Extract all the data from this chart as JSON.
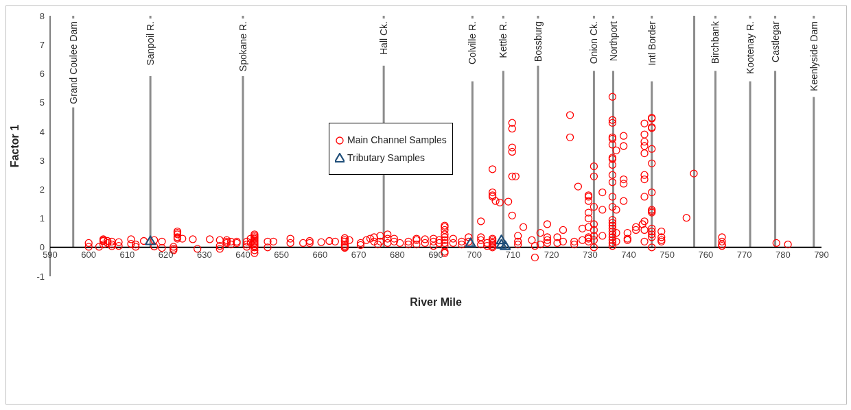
{
  "chart_data": {
    "type": "scatter",
    "xlabel": "River Mile",
    "ylabel": "Factor 1",
    "xlim": [
      590,
      790
    ],
    "xticks": [
      590,
      600,
      610,
      620,
      630,
      640,
      650,
      660,
      670,
      680,
      690,
      700,
      710,
      720,
      730,
      740,
      750,
      760,
      770,
      780,
      790
    ],
    "ylim": [
      -1,
      8
    ],
    "yticks": [
      -1,
      0,
      1,
      2,
      3,
      4,
      5,
      6,
      7,
      8
    ],
    "grid": false,
    "legend": "left",
    "series": [
      {
        "name": "Main Channel Samples",
        "color": "#ff0000",
        "marker": "circle",
        "x": [
          600,
          600,
          602.7,
          603.8,
          603.8,
          603.8,
          603.8,
          604.9,
          604.9,
          606,
          606,
          606,
          607.8,
          607.8,
          611,
          611,
          612.2,
          612.2,
          614.3,
          617,
          617,
          619,
          619,
          622,
          622,
          622,
          623,
          623,
          623,
          623,
          623,
          624.3,
          627,
          628.2,
          631.4,
          634,
          634,
          634,
          635.8,
          635.8,
          635.8,
          636.9,
          636.9,
          638.4,
          638.4,
          641,
          641,
          641,
          642,
          642,
          643,
          643,
          643,
          643,
          643,
          643,
          643,
          643,
          643,
          643,
          643,
          643,
          646.4,
          646.4,
          647.9,
          652.3,
          652.3,
          655.6,
          657.3,
          657.3,
          660.3,
          662.4,
          663.9,
          666.4,
          666.4,
          666.4,
          666.4,
          666.4,
          666.4,
          666.4,
          667.6,
          670.5,
          670.5,
          672,
          673,
          674,
          674,
          675,
          675.6,
          675.6,
          677.5,
          677.5,
          677.5,
          679.2,
          679.2,
          680.7,
          682.9,
          682.9,
          685,
          685,
          685,
          687.2,
          687.2,
          689.4,
          689.4,
          689.4,
          690.9,
          690.9,
          692.3,
          692.3,
          692.3,
          692.3,
          692.3,
          692.3,
          692.3,
          692.3,
          692.3,
          692.3,
          694.5,
          694.5,
          696.7,
          696.7,
          698.5,
          698.5,
          701.7,
          701.7,
          701.7,
          701.7,
          703.3,
          703.3,
          704.7,
          704.7,
          704.7,
          704.7,
          704.7,
          704.7,
          704.7,
          704.7,
          704.7,
          704.7,
          704.7,
          705.5,
          706.6,
          708.8,
          709.8,
          709.8,
          709.8,
          709.8,
          709.8,
          709.8,
          710.7,
          711.3,
          711.3,
          711.3,
          712.7,
          714.9,
          715.7,
          715.7,
          717.1,
          717.1,
          718.9,
          718.9,
          718.9,
          718.9,
          721.5,
          721.5,
          723,
          723,
          724.8,
          724.8,
          725.9,
          725.9,
          726.9,
          728,
          728,
          729.6,
          729.6,
          729.6,
          729.6,
          729.6,
          729.6,
          729.6,
          729.6,
          729.6,
          731,
          731,
          731,
          731,
          731,
          731,
          731,
          731,
          733.2,
          733.2,
          733.2,
          735.8,
          735.8,
          735.8,
          735.8,
          735.8,
          735.8,
          735.8,
          735.8,
          735.8,
          735.8,
          735.8,
          735.8,
          735.8,
          735.8,
          735.8,
          735.8,
          735.8,
          735.8,
          735.8,
          735.8,
          735.8,
          735.8,
          735.8,
          736.8,
          736.8,
          736.8,
          736.8,
          738.7,
          738.7,
          738.7,
          738.7,
          738.7,
          739.7,
          739.7,
          739.7,
          741.9,
          741.9,
          743.6,
          744.1,
          744.1,
          744.1,
          744.1,
          744.1,
          744.1,
          744.1,
          744.1,
          744.1,
          744.1,
          744.1,
          746,
          746,
          746,
          746,
          746,
          746,
          746,
          746,
          746,
          746,
          746,
          746,
          746,
          746,
          746,
          748.5,
          748.5,
          748.5,
          748.5,
          755,
          756.9,
          764.2,
          764.2,
          764.2,
          764.2,
          778.3,
          781.3
        ],
        "values": [
          0.15,
          0.02,
          0.02,
          0.28,
          0.25,
          0.22,
          0.1,
          0.22,
          0.15,
          0.1,
          0.2,
          0.04,
          0.18,
          0.05,
          0.28,
          0.12,
          0.1,
          0.02,
          0.22,
          0.25,
          0.03,
          0.2,
          -0.02,
          0.02,
          -0.05,
          -0.1,
          0.55,
          0.5,
          0.45,
          0.35,
          0.3,
          0.3,
          0.28,
          -0.05,
          0.28,
          0.25,
          0.05,
          -0.05,
          0.25,
          0.2,
          0.15,
          0.2,
          0.1,
          0.2,
          0.15,
          0.2,
          0.1,
          0.02,
          0.3,
          0.15,
          0.45,
          0.4,
          0.35,
          0.3,
          0.25,
          0.2,
          0.15,
          0.1,
          0.05,
          0,
          -0.1,
          -0.2,
          0.2,
          0,
          0.2,
          0.3,
          0.15,
          0.15,
          0.22,
          0.15,
          0.18,
          0.22,
          0.2,
          0.32,
          0.25,
          0.2,
          0.1,
          0.05,
          0,
          -0.02,
          0.25,
          0.15,
          0.08,
          0.25,
          0.3,
          0.35,
          0.2,
          0.1,
          0.4,
          0.2,
          0.45,
          0.3,
          0.15,
          0.3,
          0.2,
          0.15,
          0.1,
          0.2,
          0.3,
          0.25,
          0.1,
          0.28,
          0.15,
          0.3,
          0.2,
          0.05,
          0.25,
          0.15,
          0.75,
          0.7,
          0.6,
          0.45,
          0.35,
          0.25,
          0.15,
          0.05,
          -0.15,
          -0.2,
          0.3,
          0.15,
          0.2,
          0.1,
          0.35,
          0.2,
          0.9,
          0.35,
          0.25,
          0.1,
          0.15,
          0.05,
          2.7,
          1.9,
          1.8,
          1.75,
          0.3,
          0.25,
          0.2,
          0.15,
          0.1,
          0.05,
          0,
          1.6,
          1.55,
          1.58,
          4.3,
          4.1,
          3.45,
          3.3,
          2.45,
          1.1,
          2.45,
          0.4,
          0.1,
          0.2,
          0.7,
          0.25,
          -0.35,
          0.05,
          0.5,
          0.1,
          0.8,
          0.35,
          0.25,
          0.15,
          0.35,
          0.15,
          0.6,
          0.2,
          4.57,
          3.8,
          0.2,
          0.1,
          2.1,
          0.65,
          0.25,
          1.8,
          1.75,
          1.6,
          1.2,
          1,
          0.7,
          0.35,
          0.3,
          0.2,
          2.8,
          2.45,
          1.4,
          0.8,
          0.6,
          0.4,
          0.25,
          0,
          1.3,
          1.9,
          0.4,
          5.2,
          4.4,
          4.3,
          3.8,
          3.75,
          3.55,
          3.1,
          3.05,
          2.85,
          2.5,
          2.25,
          1.75,
          1.4,
          0.95,
          0.85,
          0.75,
          0.65,
          0.55,
          0.45,
          0.35,
          0.25,
          0.15,
          0.05,
          3.35,
          1.3,
          0.5,
          0.2,
          3.85,
          3.5,
          2.35,
          2.2,
          1.6,
          0.5,
          0.3,
          0.25,
          0.6,
          0.7,
          0.8,
          4.28,
          3.9,
          3.65,
          3.5,
          3.25,
          2.5,
          2.35,
          1.75,
          0.9,
          0.6,
          0.2,
          4.48,
          4.45,
          4.15,
          4.12,
          3.4,
          2.9,
          1.9,
          1.3,
          1.25,
          1.2,
          0.65,
          0.55,
          0.45,
          0.35,
          0,
          0.55,
          0.35,
          0.25,
          0.2,
          1.02,
          2.55,
          0.35,
          0.2,
          0.1,
          0.05,
          0.15,
          0.1
        ]
      },
      {
        "name": "Tributary Samples",
        "color": "#1f4e79",
        "marker": "triangle",
        "x": [
          616,
          699,
          707,
          707,
          708
        ],
        "values": [
          0.22,
          0.15,
          0.25,
          0.1,
          0.05
        ]
      }
    ],
    "ref_lines": [
      {
        "axis": "x",
        "value": 596,
        "label": "Grand Coulee Dam",
        "color": "#8c8c8c"
      },
      {
        "axis": "x",
        "value": 616,
        "label": "Sanpoil R.",
        "color": "#8c8c8c"
      },
      {
        "axis": "x",
        "value": 640,
        "label": "Spokane R.",
        "color": "#8c8c8c"
      },
      {
        "axis": "x",
        "value": 676.5,
        "label": "Hall Ck.",
        "color": "#8c8c8c"
      },
      {
        "axis": "x",
        "value": 699.5,
        "label": "Colville R.",
        "color": "#8c8c8c"
      },
      {
        "axis": "x",
        "value": 707.5,
        "label": "Kettle R.",
        "color": "#8c8c8c"
      },
      {
        "axis": "x",
        "value": 716.5,
        "label": "Bossburg",
        "color": "#8c8c8c"
      },
      {
        "axis": "x",
        "value": 731,
        "label": "Onion Ck.",
        "color": "#8c8c8c"
      },
      {
        "axis": "x",
        "value": 736,
        "label": "Northport",
        "color": "#8c8c8c"
      },
      {
        "axis": "x",
        "value": 746,
        "label": "Intl Border",
        "color": "#8c8c8c"
      },
      {
        "axis": "x",
        "value": 757,
        "label": null,
        "color": "#8c8c8c"
      },
      {
        "axis": "x",
        "value": 762.5,
        "label": "Birchbank",
        "color": "#8c8c8c"
      },
      {
        "axis": "x",
        "value": 771.5,
        "label": "Kootenay R.",
        "color": "#8c8c8c"
      },
      {
        "axis": "x",
        "value": 778,
        "label": "Castlegar",
        "color": "#8c8c8c"
      },
      {
        "axis": "x",
        "value": 788,
        "label": "Keenlyside Dam",
        "color": "#8c8c8c"
      }
    ]
  }
}
